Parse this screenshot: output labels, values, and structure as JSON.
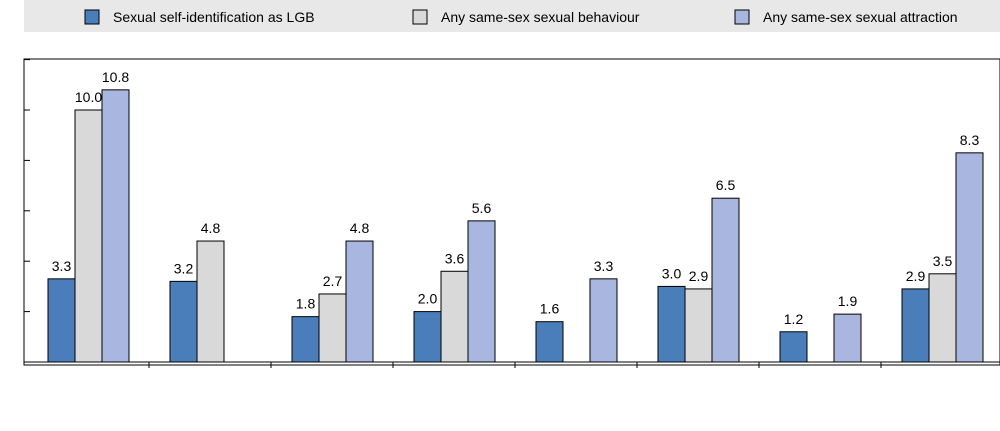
{
  "chart_data": {
    "type": "bar",
    "categories": [
      "",
      "",
      "",
      "",
      "",
      "",
      "",
      ""
    ],
    "series": [
      {
        "name": "Sexual self-identification as LGB",
        "color": "#4a7ebb",
        "values": [
          3.3,
          3.2,
          1.8,
          2.0,
          1.6,
          3.0,
          1.2,
          2.9
        ]
      },
      {
        "name": "Any same-sex sexual behaviour",
        "color": "#d9d9d9",
        "values": [
          10.0,
          4.8,
          2.7,
          3.6,
          null,
          2.9,
          null,
          3.5
        ]
      },
      {
        "name": "Any same-sex sexual attraction",
        "color": "#a9b7e0",
        "values": [
          10.8,
          null,
          4.8,
          5.6,
          3.3,
          6.5,
          1.9,
          8.3
        ]
      }
    ],
    "ylim": [
      0,
      12
    ],
    "y_ticks": [
      0,
      2,
      4,
      6,
      8,
      10,
      12
    ],
    "grid": false,
    "legend_position": "top",
    "title": "",
    "xlabel": "",
    "ylabel": ""
  }
}
